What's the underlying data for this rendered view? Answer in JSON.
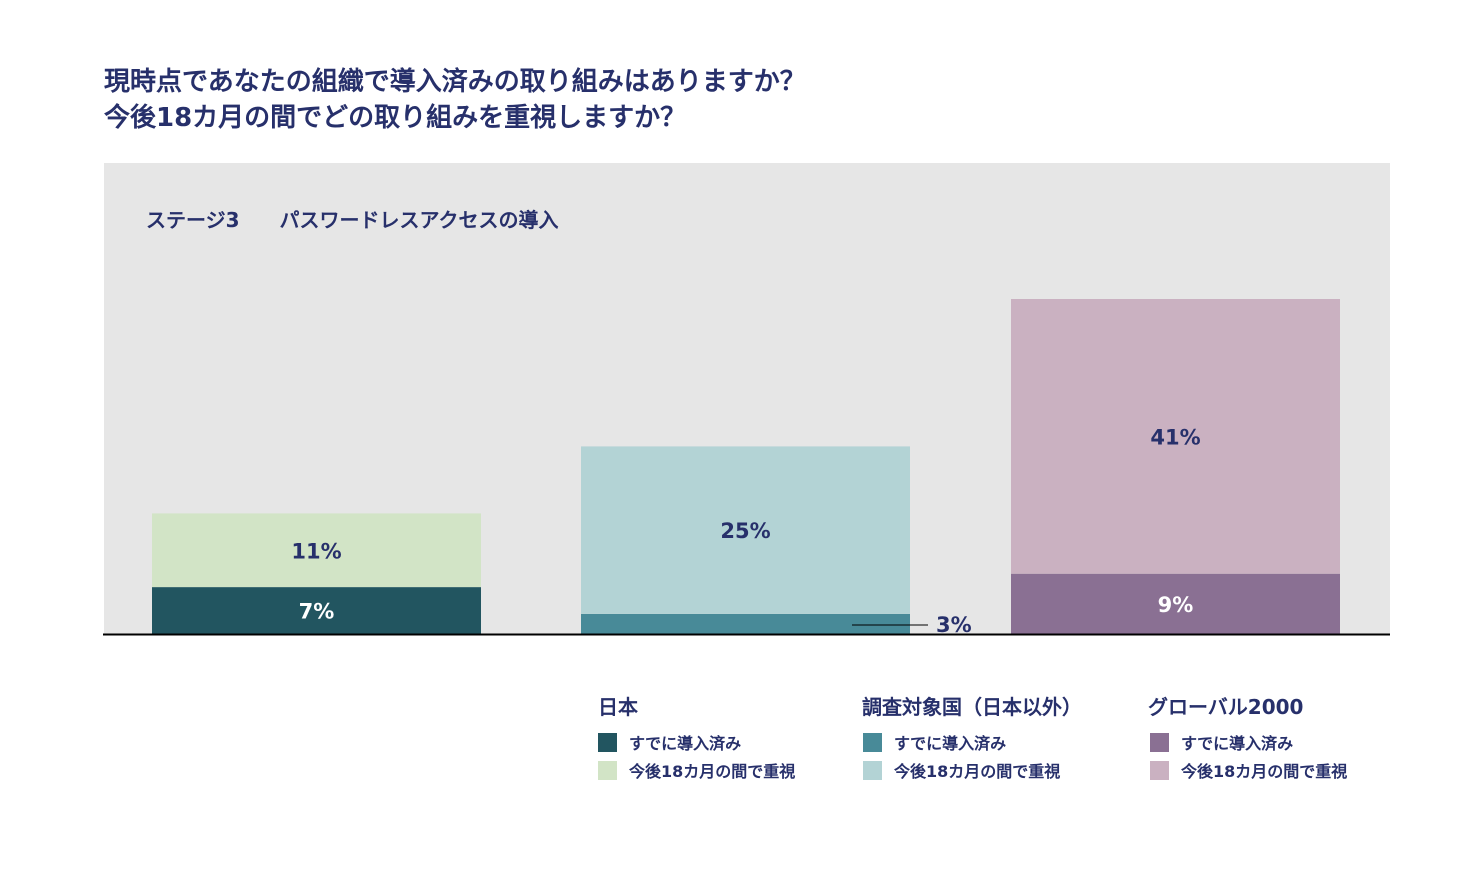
{
  "title_lines": [
    "現時点であなたの組織で導入済みの取り組みはありますか？",
    "今後18カ月の間でどの取り組みを重視しますか？"
  ],
  "chart_data": {
    "type": "bar",
    "stacked": true,
    "subtitle": "ステージ3　　パスワードレスアクセスの導入",
    "categories": [
      "日本",
      "調査対象国（日本以外）",
      "グローバル2000"
    ],
    "series": [
      {
        "name": "すでに導入済み",
        "values": [
          7,
          3,
          9
        ],
        "labels": [
          "7%",
          "3%",
          "9%"
        ],
        "colors": [
          "#225560",
          "#488a98",
          "#8a7093"
        ]
      },
      {
        "name": "今後18カ月の間で重視",
        "values": [
          11,
          25,
          41
        ],
        "labels": [
          "11%",
          "25%",
          "41%"
        ],
        "colors": [
          "#d2e4c6",
          "#b3d3d5",
          "#cab1c1"
        ]
      }
    ],
    "ylim": [
      0,
      70
    ],
    "grid": false,
    "legend_placement": "bottom-right"
  },
  "legend": {
    "groups": [
      {
        "title": "日本",
        "items": [
          "すでに導入済み",
          "今後18カ月の間で重視"
        ],
        "colors": [
          "#225560",
          "#d2e4c6"
        ]
      },
      {
        "title": "調査対象国（日本以外）",
        "items": [
          "すでに導入済み",
          "今後18カ月の間で重視"
        ],
        "colors": [
          "#488a98",
          "#b3d3d5"
        ]
      },
      {
        "title": "グローバル2000",
        "items": [
          "すでに導入済み",
          "今後18カ月の間で重視"
        ],
        "colors": [
          "#8a7093",
          "#cab1c1"
        ]
      }
    ]
  }
}
